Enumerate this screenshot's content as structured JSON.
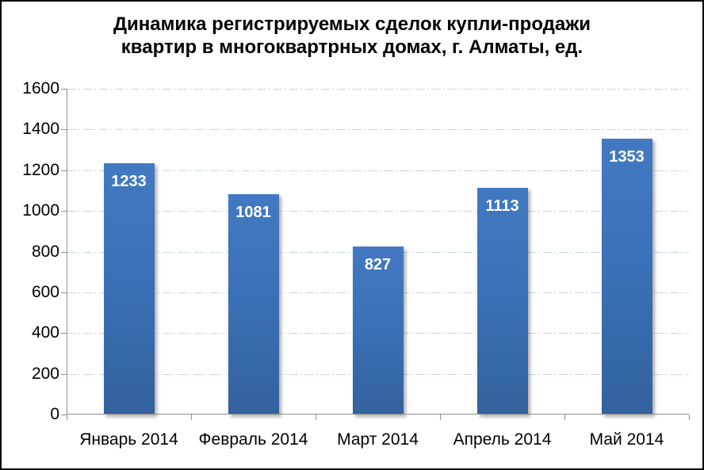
{
  "title": {
    "line1": "Динамика регистрируемых сделок купли-продажи",
    "line2": "квартир в многоквартрных домах, г. Алматы, ед."
  },
  "chart_data": {
    "type": "bar",
    "title": "Динамика регистрируемых сделок купли-продажи квартир в многоквартрных домах, г. Алматы, ед.",
    "categories": [
      "Январь 2014",
      "Февраль 2014",
      "Март 2014",
      "Апрель 2014",
      "Май 2014"
    ],
    "values": [
      1233,
      1081,
      827,
      1113,
      1353
    ],
    "xlabel": "",
    "ylabel": "",
    "ylim": [
      0,
      1600
    ],
    "yticks": [
      0,
      200,
      400,
      600,
      800,
      1000,
      1200,
      1400,
      1600
    ],
    "grid": "horizontal dash-dot gridlines, no vertical grid",
    "legend": "none",
    "bar_color": "#3A71B9",
    "bar_label_color": "#FFFFFF",
    "gridline_color": "#C6D5E8",
    "axis_color": "#8E8E8E"
  }
}
